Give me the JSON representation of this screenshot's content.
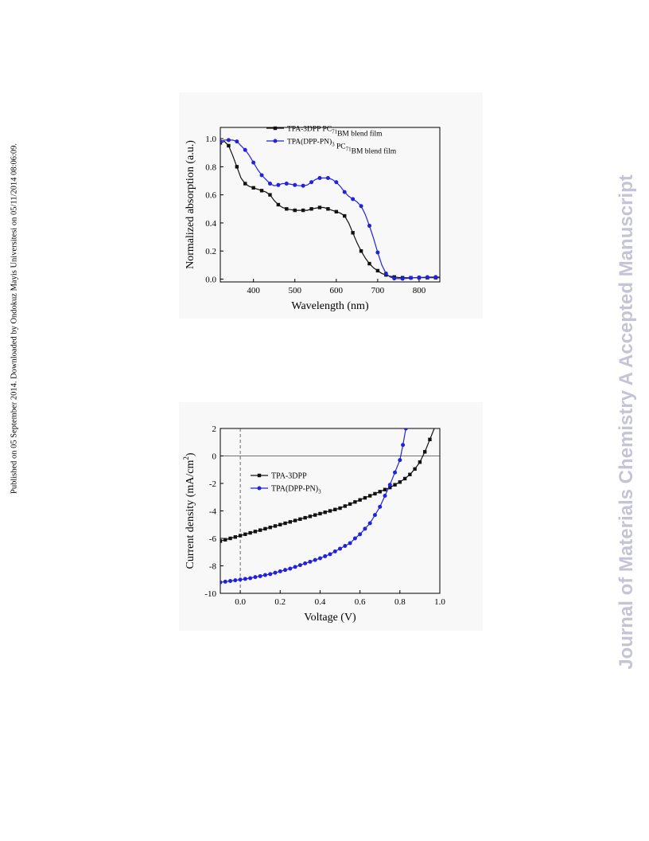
{
  "side_note": "Published on 05 September 2014. Downloaded by Ondokuz Mayis Universitesi on 05/11/2014 08:06:09.",
  "watermark": "Journal of Materials Chemistry A Accepted Manuscript",
  "chart_data": [
    {
      "type": "line",
      "xlabel": "Wavelength (nm)",
      "ylabel": "Normalized absorption (a.u.)",
      "xlim": [
        320,
        850
      ],
      "ylim": [
        -0.02,
        1.08
      ],
      "xticks": [
        400,
        500,
        600,
        700,
        800
      ],
      "yticks": [
        0.0,
        0.2,
        0.4,
        0.6,
        0.8,
        1.0
      ],
      "xtick_labels": [
        "400",
        "500",
        "600",
        "700",
        "800"
      ],
      "ytick_labels": [
        "0.0",
        "0.2",
        "0.4",
        "0.6",
        "0.8",
        "1.0"
      ],
      "legend_position": "top-right",
      "series": [
        {
          "name": "TPA-3DPP PC",
          "name_sub": "71",
          "name_suffix": "BM blend film",
          "color": "#111111",
          "marker": "square",
          "x": [
            320,
            330,
            340,
            350,
            360,
            370,
            380,
            390,
            400,
            410,
            420,
            430,
            440,
            450,
            460,
            470,
            480,
            490,
            500,
            510,
            520,
            530,
            540,
            550,
            560,
            570,
            580,
            590,
            600,
            610,
            620,
            630,
            640,
            650,
            660,
            670,
            680,
            690,
            700,
            710,
            720,
            730,
            740,
            750,
            760,
            770,
            780,
            790,
            800,
            810,
            820,
            830,
            840,
            850
          ],
          "y": [
            0.97,
            0.98,
            0.95,
            0.88,
            0.8,
            0.72,
            0.68,
            0.66,
            0.65,
            0.64,
            0.63,
            0.62,
            0.6,
            0.56,
            0.53,
            0.51,
            0.5,
            0.495,
            0.49,
            0.49,
            0.49,
            0.49,
            0.5,
            0.505,
            0.51,
            0.51,
            0.5,
            0.49,
            0.48,
            0.47,
            0.45,
            0.4,
            0.33,
            0.26,
            0.2,
            0.15,
            0.11,
            0.08,
            0.06,
            0.04,
            0.03,
            0.02,
            0.015,
            0.012,
            0.01,
            0.01,
            0.01,
            0.01,
            0.01,
            0.01,
            0.01,
            0.01,
            0.01,
            0.01
          ]
        },
        {
          "name": "TPA(DPP-PN)",
          "name_sub": "3",
          "name_suffix": " PC",
          "name_sub2": "71",
          "name_suffix2": "BM blend film",
          "color": "#2222dd",
          "marker": "circle",
          "x": [
            320,
            330,
            340,
            350,
            360,
            370,
            380,
            390,
            400,
            410,
            420,
            430,
            440,
            450,
            460,
            470,
            480,
            490,
            500,
            510,
            520,
            530,
            540,
            550,
            560,
            570,
            580,
            590,
            600,
            610,
            620,
            630,
            640,
            650,
            660,
            670,
            680,
            690,
            700,
            710,
            720,
            730,
            740,
            750,
            760,
            770,
            780,
            790,
            800,
            810,
            820,
            830,
            840,
            850
          ],
          "y": [
            0.98,
            0.99,
            0.99,
            0.99,
            0.98,
            0.95,
            0.92,
            0.88,
            0.83,
            0.78,
            0.74,
            0.71,
            0.68,
            0.665,
            0.67,
            0.68,
            0.68,
            0.675,
            0.67,
            0.665,
            0.665,
            0.67,
            0.69,
            0.71,
            0.72,
            0.72,
            0.72,
            0.71,
            0.69,
            0.66,
            0.62,
            0.59,
            0.57,
            0.55,
            0.52,
            0.46,
            0.38,
            0.29,
            0.19,
            0.1,
            0.04,
            0.015,
            0.005,
            0.003,
            0.003,
            0.005,
            0.008,
            0.01,
            0.012,
            0.013,
            0.014,
            0.015,
            0.015,
            0.015
          ]
        }
      ]
    },
    {
      "type": "line",
      "xlabel": "Voltage (V)",
      "ylabel": "Current density (mA/cm",
      "ylabel_sup": "2",
      "ylabel_end": ")",
      "xlim": [
        -0.1,
        1.0
      ],
      "ylim": [
        -10,
        2
      ],
      "xticks": [
        0.0,
        0.2,
        0.4,
        0.6,
        0.8,
        1.0
      ],
      "yticks": [
        -10,
        -8,
        -6,
        -4,
        -2,
        0,
        2
      ],
      "xtick_labels": [
        "0.0",
        "0.2",
        "0.4",
        "0.6",
        "0.8",
        "1.0"
      ],
      "ytick_labels": [
        "-10",
        "-8",
        "-6",
        "-4",
        "-2",
        "0",
        "2"
      ],
      "zero_lines": true,
      "legend_position": "center-left",
      "series": [
        {
          "name": "TPA-3DPP",
          "color": "#111111",
          "marker": "square",
          "x": [
            -0.1,
            -0.075,
            -0.05,
            -0.025,
            0.0,
            0.025,
            0.05,
            0.075,
            0.1,
            0.125,
            0.15,
            0.175,
            0.2,
            0.225,
            0.25,
            0.275,
            0.3,
            0.325,
            0.35,
            0.375,
            0.4,
            0.425,
            0.45,
            0.475,
            0.5,
            0.525,
            0.55,
            0.575,
            0.6,
            0.625,
            0.65,
            0.675,
            0.7,
            0.725,
            0.75,
            0.775,
            0.8,
            0.825,
            0.85,
            0.875,
            0.9,
            0.925,
            0.95,
            0.975
          ],
          "y": [
            -6.2,
            -6.1,
            -6.0,
            -5.9,
            -5.8,
            -5.7,
            -5.6,
            -5.5,
            -5.4,
            -5.3,
            -5.2,
            -5.1,
            -5.0,
            -4.9,
            -4.8,
            -4.7,
            -4.6,
            -4.5,
            -4.4,
            -4.3,
            -4.2,
            -4.1,
            -4.0,
            -3.9,
            -3.8,
            -3.65,
            -3.5,
            -3.35,
            -3.2,
            -3.05,
            -2.9,
            -2.75,
            -2.6,
            -2.45,
            -2.3,
            -2.1,
            -1.9,
            -1.65,
            -1.35,
            -0.95,
            -0.45,
            0.3,
            1.2,
            2.1
          ]
        },
        {
          "name": "TPA(DPP-PN)",
          "name_sub": "3",
          "color": "#2222dd",
          "marker": "circle",
          "x": [
            -0.1,
            -0.075,
            -0.05,
            -0.025,
            0.0,
            0.025,
            0.05,
            0.075,
            0.1,
            0.125,
            0.15,
            0.175,
            0.2,
            0.225,
            0.25,
            0.275,
            0.3,
            0.325,
            0.35,
            0.375,
            0.4,
            0.425,
            0.45,
            0.475,
            0.5,
            0.525,
            0.55,
            0.575,
            0.6,
            0.625,
            0.65,
            0.675,
            0.7,
            0.725,
            0.75,
            0.775,
            0.8,
            0.815,
            0.83
          ],
          "y": [
            -9.2,
            -9.15,
            -9.1,
            -9.05,
            -9.0,
            -8.95,
            -8.9,
            -8.82,
            -8.75,
            -8.67,
            -8.6,
            -8.5,
            -8.4,
            -8.3,
            -8.2,
            -8.08,
            -7.95,
            -7.82,
            -7.7,
            -7.57,
            -7.45,
            -7.3,
            -7.15,
            -6.95,
            -6.75,
            -6.55,
            -6.35,
            -6.0,
            -5.7,
            -5.3,
            -4.9,
            -4.3,
            -3.7,
            -2.9,
            -2.1,
            -1.2,
            -0.3,
            0.8,
            2.0
          ]
        }
      ]
    }
  ]
}
